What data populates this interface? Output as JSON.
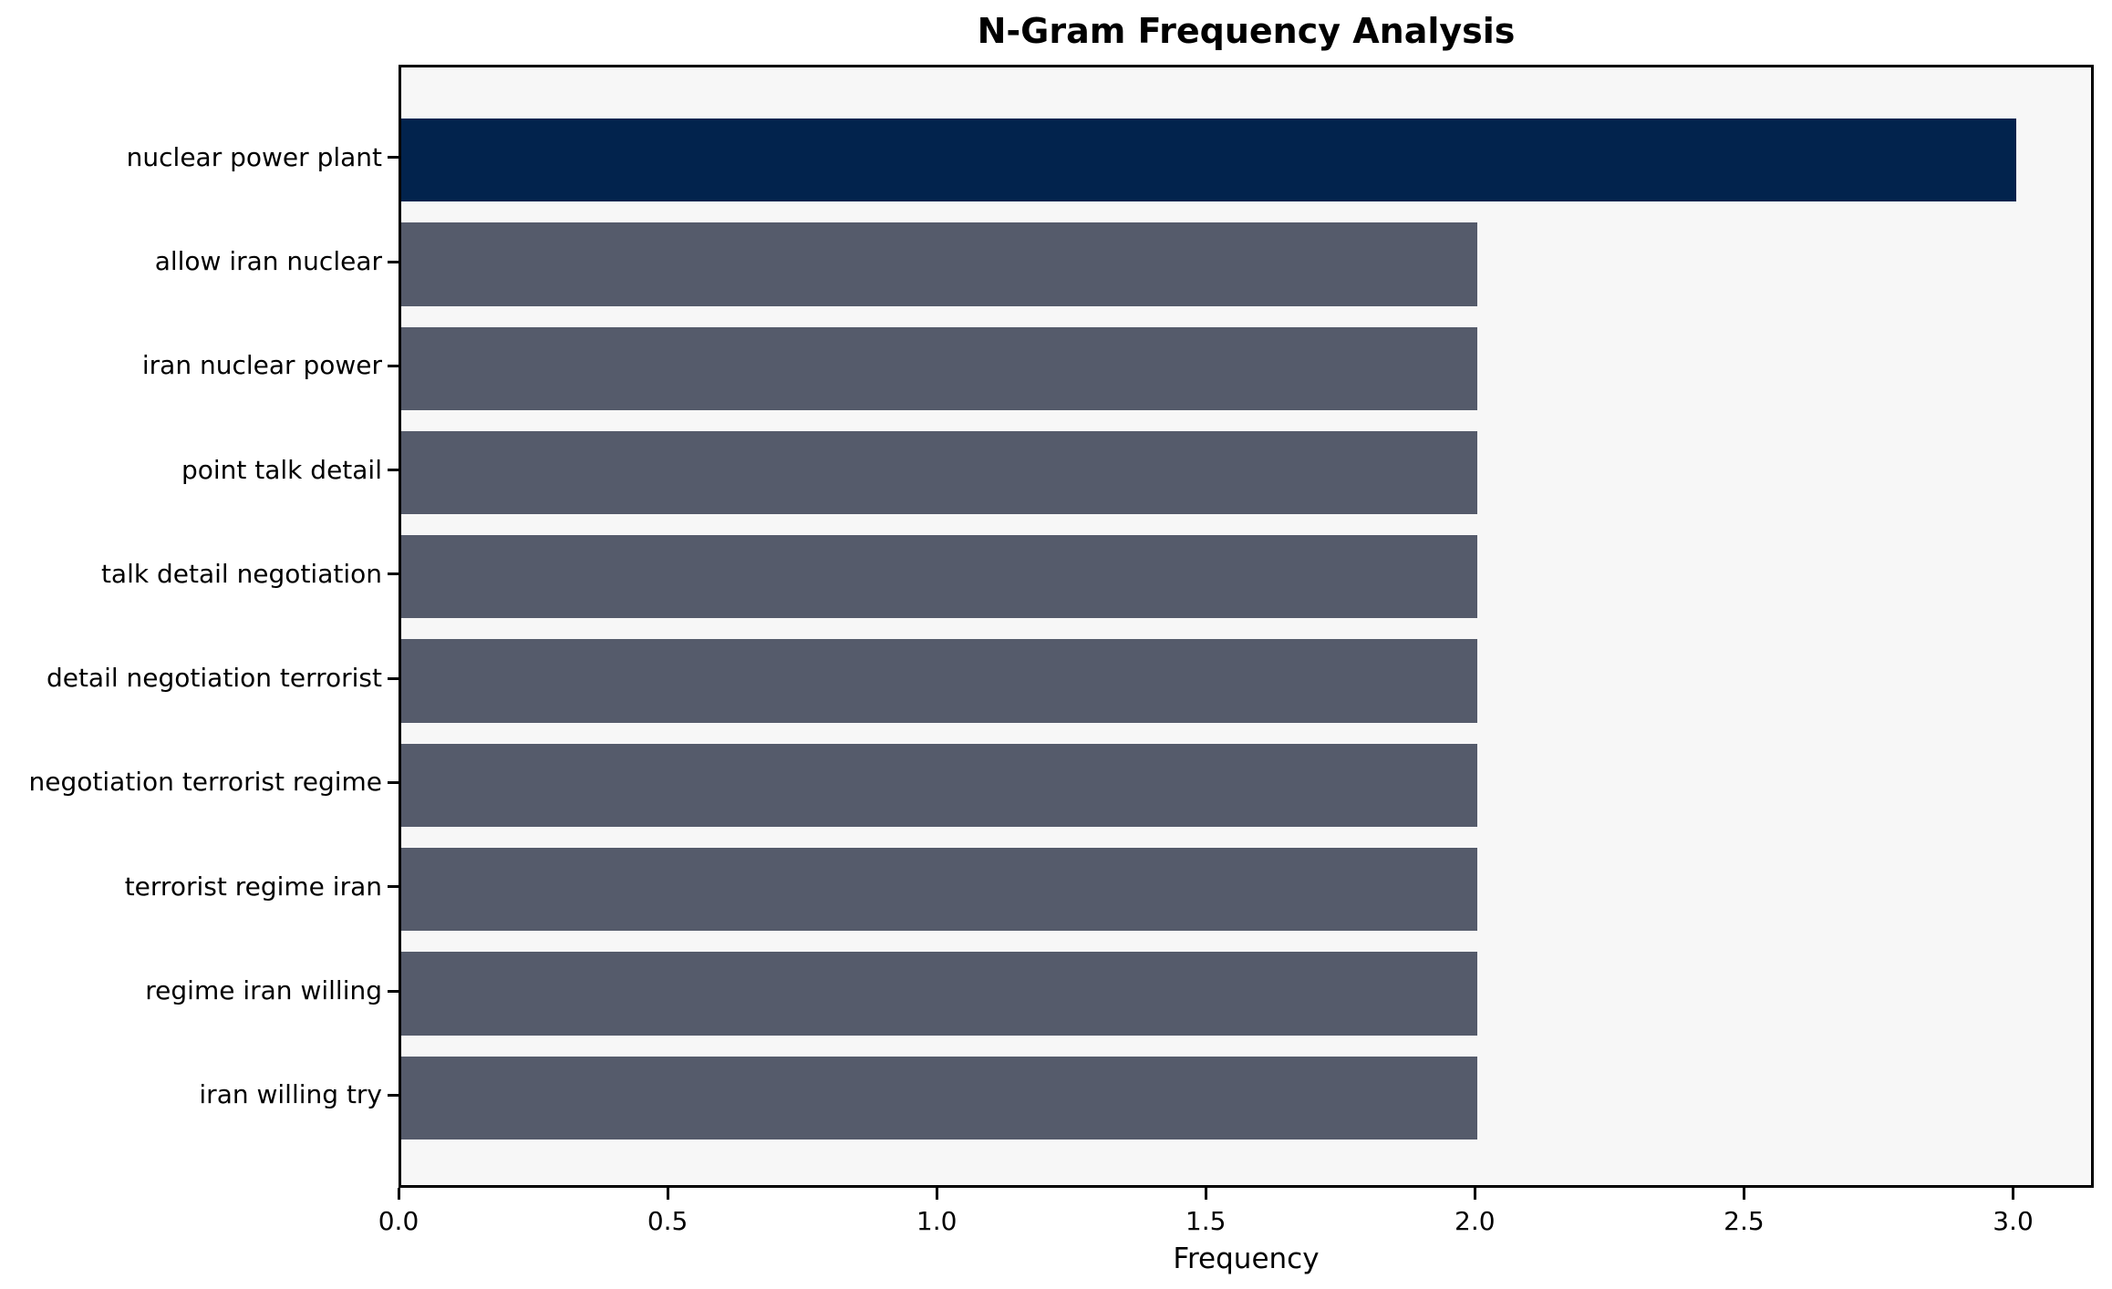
{
  "chart_data": {
    "type": "bar",
    "orientation": "horizontal",
    "title": "N-Gram Frequency Analysis",
    "xlabel": "Frequency",
    "ylabel": "",
    "categories": [
      "nuclear power plant",
      "allow iran nuclear",
      "iran nuclear power",
      "point talk detail",
      "talk detail negotiation",
      "detail negotiation terrorist",
      "negotiation terrorist regime",
      "terrorist regime iran",
      "regime iran willing",
      "iran willing try"
    ],
    "values": [
      3,
      2,
      2,
      2,
      2,
      2,
      2,
      2,
      2,
      2
    ],
    "xlim": [
      0,
      3.15
    ],
    "xticks": [
      0.0,
      0.5,
      1.0,
      1.5,
      2.0,
      2.5,
      3.0
    ],
    "xtick_labels": [
      "0.0",
      "0.5",
      "1.0",
      "1.5",
      "2.0",
      "2.5",
      "3.0"
    ],
    "grid": false,
    "legend": null,
    "highlight_index": 0,
    "colors": {
      "bar_highlight": "#02234D",
      "bar_default": "#555B6B",
      "plot_background": "#F7F7F7",
      "figure_background": "#FFFFFF",
      "spine": "#000000",
      "text": "#000000"
    }
  }
}
